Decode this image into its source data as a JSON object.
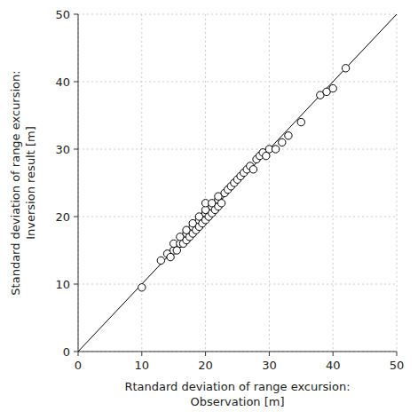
{
  "chart_data": {
    "type": "scatter",
    "xlabel": "Rtandard deviation of range excursion:\nObservation [m]",
    "ylabel": "Standard deviation of range excursion:\nInversion result [m]",
    "x": [
      10,
      13,
      14,
      14.5,
      15,
      15.5,
      15,
      16,
      16.5,
      16,
      17,
      17,
      17.5,
      17,
      18,
      18,
      18.5,
      18,
      19,
      19,
      19.5,
      19,
      20,
      20,
      20.5,
      20,
      20,
      21,
      21,
      21.5,
      21,
      22,
      22,
      22.5,
      22,
      23,
      23.5,
      24,
      24.5,
      25,
      25.5,
      26,
      26.5,
      27,
      27.5,
      28,
      28.5,
      29,
      29.5,
      30,
      31,
      32,
      33,
      35,
      38,
      39,
      40,
      42
    ],
    "values": [
      9.5,
      13.5,
      14.5,
      14,
      15,
      15,
      16,
      16,
      16,
      17,
      16.5,
      17.5,
      17,
      18,
      17.5,
      18.5,
      18,
      19,
      18.5,
      19.5,
      19,
      20,
      19.5,
      20.5,
      20,
      21,
      22,
      20.5,
      21.5,
      21,
      22,
      21.5,
      22.5,
      22,
      23,
      23.5,
      24,
      24.5,
      25,
      25.5,
      26,
      26.5,
      27,
      27.5,
      27,
      28.5,
      29,
      29.5,
      29,
      30,
      30,
      31,
      32,
      34,
      38,
      38.5,
      39,
      42
    ],
    "color": "black",
    "marker": "circle",
    "xlim": [
      0,
      50
    ],
    "ylim": [
      0,
      50
    ],
    "xticks": [
      0,
      10,
      20,
      30,
      40,
      50
    ],
    "yticks": [
      0,
      10,
      20,
      30,
      40,
      50
    ],
    "grid": true
  }
}
